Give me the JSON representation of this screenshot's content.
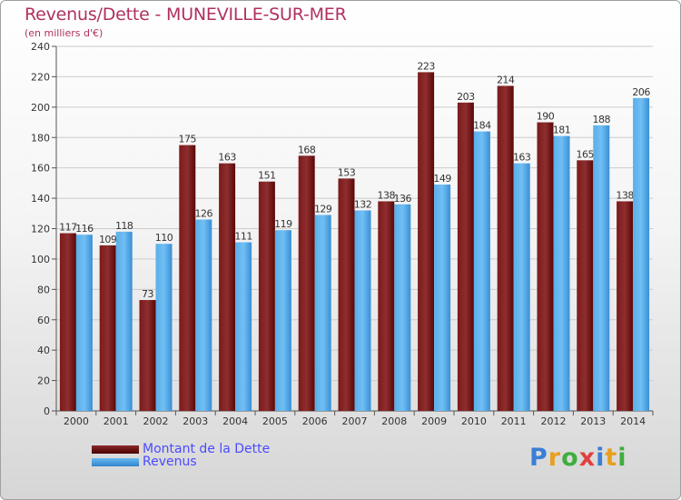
{
  "header": {
    "title": "Revenus/Dette - MUNEVILLE-SUR-MER",
    "subtitle": "(en milliers d'€)"
  },
  "logo": {
    "text": "Proxiti",
    "colors": [
      "#3a7fd6",
      "#e8a020",
      "#3fae3f",
      "#e04040",
      "#3a7fd6",
      "#e8a020",
      "#3fae3f"
    ]
  },
  "colors": {
    "dette_top": "#8a2a2a",
    "dette_bottom": "#4a0000",
    "revenus_top": "#6ab8f0",
    "revenus_bottom": "#2f86cc",
    "value_label": "#333333",
    "axis": "#555555",
    "grid": "#cccccc"
  },
  "chart_data": {
    "type": "bar",
    "title": "Revenus/Dette - MUNEVILLE-SUR-MER",
    "subtitle": "(en milliers d'€)",
    "categories": [
      "2000",
      "2001",
      "2002",
      "2003",
      "2004",
      "2005",
      "2006",
      "2007",
      "2008",
      "2009",
      "2010",
      "2011",
      "2012",
      "2013",
      "2014"
    ],
    "series": [
      {
        "name": "Montant de la Dette",
        "values": [
          117,
          109,
          73,
          175,
          163,
          151,
          168,
          153,
          138,
          223,
          203,
          214,
          190,
          165,
          138
        ]
      },
      {
        "name": "Revenus",
        "values": [
          116,
          118,
          110,
          126,
          111,
          119,
          129,
          132,
          136,
          149,
          184,
          163,
          181,
          188,
          206
        ]
      }
    ],
    "ylim": [
      0,
      240
    ],
    "yticks": [
      0,
      20,
      40,
      60,
      80,
      100,
      120,
      140,
      160,
      180,
      200,
      220,
      240
    ],
    "grid": true,
    "legend_position": "bottom-left"
  }
}
